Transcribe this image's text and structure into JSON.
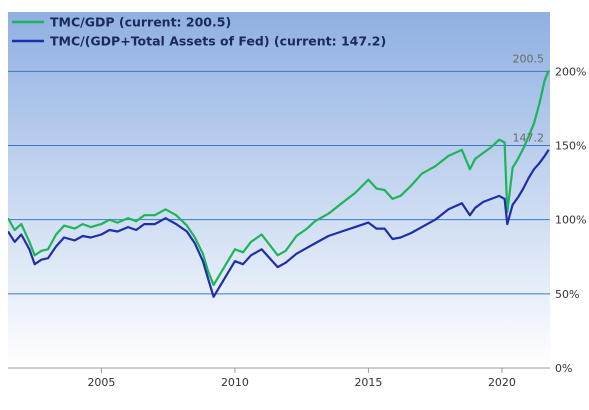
{
  "colors": {
    "bg_top": "#8fb0e2",
    "bg_bottom": "#ffffff",
    "grid": "#3a78c9",
    "series_green": "#1db45a",
    "series_blue": "#1f2fa8"
  },
  "chart_data": {
    "type": "line",
    "title": "",
    "xlabel": "",
    "ylabel": "",
    "xlim": [
      2001.5,
      2021.8
    ],
    "ylim": [
      0,
      240
    ],
    "x_ticks": [
      2005,
      2010,
      2015,
      2020
    ],
    "x_tick_labels": [
      "2005",
      "2010",
      "2015",
      "2020"
    ],
    "y_ticks": [
      0,
      50,
      100,
      150,
      200
    ],
    "y_tick_labels": [
      "0%",
      "50%",
      "100%",
      "150%",
      "200%"
    ],
    "grid": true,
    "legend_position": "top-left",
    "series": [
      {
        "name": "TMC/GDP (current: 200.5)",
        "color": "#1db45a",
        "end_label": "200.5",
        "x": [
          2001.5,
          2001.75,
          2002.0,
          2002.3,
          2002.5,
          2002.75,
          2003.0,
          2003.3,
          2003.6,
          2004.0,
          2004.3,
          2004.6,
          2005.0,
          2005.3,
          2005.6,
          2006.0,
          2006.3,
          2006.6,
          2007.0,
          2007.4,
          2007.8,
          2008.2,
          2008.5,
          2008.8,
          2009.0,
          2009.2,
          2009.5,
          2009.8,
          2010.0,
          2010.3,
          2010.6,
          2011.0,
          2011.3,
          2011.6,
          2011.9,
          2012.3,
          2012.7,
          2013.0,
          2013.5,
          2014.0,
          2014.5,
          2015.0,
          2015.3,
          2015.6,
          2015.9,
          2016.2,
          2016.6,
          2017.0,
          2017.5,
          2018.0,
          2018.5,
          2018.8,
          2019.0,
          2019.3,
          2019.6,
          2019.9,
          2020.1,
          2020.2,
          2020.4,
          2020.6,
          2020.8,
          2021.0,
          2021.2,
          2021.4,
          2021.6,
          2021.75
        ],
        "y": [
          101,
          93,
          97,
          85,
          76,
          79,
          80,
          90,
          96,
          94,
          97,
          95,
          97,
          100,
          98,
          101,
          99,
          103,
          103,
          107,
          103,
          96,
          88,
          77,
          65,
          56,
          65,
          74,
          80,
          78,
          85,
          90,
          83,
          76,
          79,
          89,
          94,
          99,
          104,
          111,
          118,
          127,
          121,
          120,
          114,
          116,
          123,
          131,
          136,
          143,
          147,
          134,
          141,
          145,
          149,
          154,
          152,
          105,
          135,
          141,
          148,
          156,
          165,
          178,
          194,
          200.5
        ]
      },
      {
        "name": "TMC/(GDP+Total Assets of Fed) (current: 147.2)",
        "color": "#1f2fa8",
        "end_label": "147.2",
        "x": [
          2001.5,
          2001.75,
          2002.0,
          2002.3,
          2002.5,
          2002.75,
          2003.0,
          2003.3,
          2003.6,
          2004.0,
          2004.3,
          2004.6,
          2005.0,
          2005.3,
          2005.6,
          2006.0,
          2006.3,
          2006.6,
          2007.0,
          2007.4,
          2007.8,
          2008.2,
          2008.5,
          2008.8,
          2009.0,
          2009.2,
          2009.5,
          2009.8,
          2010.0,
          2010.3,
          2010.6,
          2011.0,
          2011.3,
          2011.6,
          2011.9,
          2012.3,
          2012.7,
          2013.0,
          2013.5,
          2014.0,
          2014.5,
          2015.0,
          2015.3,
          2015.6,
          2015.9,
          2016.2,
          2016.6,
          2017.0,
          2017.5,
          2018.0,
          2018.5,
          2018.8,
          2019.0,
          2019.3,
          2019.6,
          2019.9,
          2020.1,
          2020.2,
          2020.4,
          2020.6,
          2020.8,
          2021.0,
          2021.2,
          2021.4,
          2021.6,
          2021.75
        ],
        "y": [
          92,
          85,
          90,
          80,
          70,
          73,
          74,
          82,
          88,
          86,
          89,
          88,
          90,
          93,
          92,
          95,
          93,
          97,
          97,
          101,
          97,
          92,
          84,
          72,
          60,
          48,
          57,
          66,
          72,
          70,
          76,
          80,
          74,
          68,
          71,
          77,
          81,
          84,
          89,
          92,
          95,
          98,
          94,
          94,
          87,
          88,
          91,
          95,
          100,
          107,
          111,
          103,
          108,
          112,
          114,
          116,
          114,
          97,
          110,
          115,
          121,
          128,
          134,
          138,
          143,
          147.2
        ]
      }
    ]
  }
}
